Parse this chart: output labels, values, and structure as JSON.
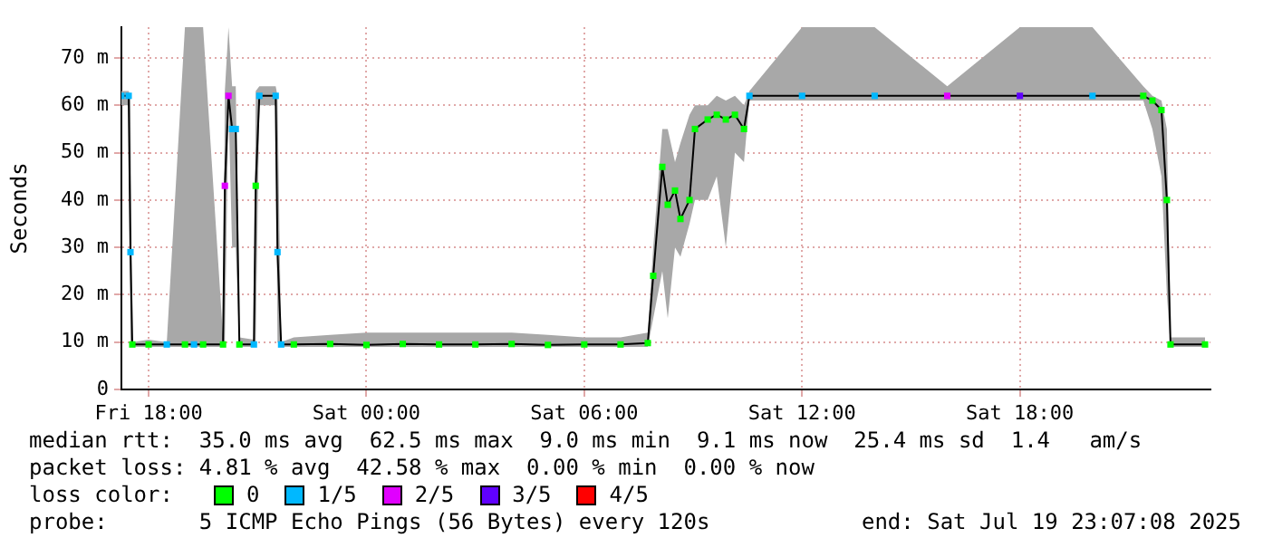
{
  "chart_data": {
    "type": "line",
    "ylabel": "Seconds",
    "legend_title": "loss color:",
    "legend": "bottom",
    "grid": true,
    "marker": "square",
    "annotations": [
      "median rtt:  35.0 ms avg  62.5 ms max  9.0 ms min  9.1 ms now  25.4 ms sd  1.4   am/s",
      "packet loss: 4.81 % avg  42.58 % max  0.00 % min  0.00 % now",
      "probe:       5 ICMP Echo Pings (56 Bytes) every 120s",
      "end: Sat Jul 19 23:07:08 2025"
    ],
    "xlim": [
      "2025-07-18T17:15",
      "2025-07-19T23:15"
    ],
    "xticks": [
      {
        "value": "2025-07-18T18:00",
        "label": "Fri 18:00"
      },
      {
        "value": "2025-07-19T00:00",
        "label": "Sat 00:00"
      },
      {
        "value": "2025-07-19T06:00",
        "label": "Sat 06:00"
      },
      {
        "value": "2025-07-19T12:00",
        "label": "Sat 12:00"
      },
      {
        "value": "2025-07-19T18:00",
        "label": "Sat 18:00"
      }
    ],
    "ylim": [
      0,
      76.5
    ],
    "yticks": [
      0,
      {
        "value": 10,
        "label": "10 m"
      },
      {
        "value": 20,
        "label": "20 m"
      },
      {
        "value": 30,
        "label": "30 m"
      },
      {
        "value": 40,
        "label": "40 m"
      },
      {
        "value": 50,
        "label": "50 m"
      },
      {
        "value": 60,
        "label": "60 m"
      },
      {
        "value": 70,
        "label": "70 m"
      }
    ],
    "x": [
      "2025-07-18T17:15",
      "2025-07-18T17:27",
      "2025-07-18T17:30",
      "2025-07-18T17:33",
      "2025-07-18T18:00",
      "2025-07-18T18:30",
      "2025-07-18T19:00",
      "2025-07-18T19:15",
      "2025-07-18T19:30",
      "2025-07-18T20:03",
      "2025-07-18T20:06",
      "2025-07-18T20:12",
      "2025-07-18T20:18",
      "2025-07-18T20:24",
      "2025-07-18T20:30",
      "2025-07-18T20:54",
      "2025-07-18T20:57",
      "2025-07-18T21:03",
      "2025-07-18T21:30",
      "2025-07-18T21:33",
      "2025-07-18T21:39",
      "2025-07-18T22:00",
      "2025-07-18T23:00",
      "2025-07-19T00:00",
      "2025-07-19T01:00",
      "2025-07-19T02:00",
      "2025-07-19T03:00",
      "2025-07-19T04:00",
      "2025-07-19T05:00",
      "2025-07-19T06:00",
      "2025-07-19T07:00",
      "2025-07-19T07:45",
      "2025-07-19T07:54",
      "2025-07-19T08:09",
      "2025-07-19T08:18",
      "2025-07-19T08:30",
      "2025-07-19T08:39",
      "2025-07-19T08:54",
      "2025-07-19T09:03",
      "2025-07-19T09:24",
      "2025-07-19T09:39",
      "2025-07-19T09:54",
      "2025-07-19T10:09",
      "2025-07-19T10:24",
      "2025-07-19T10:33",
      "2025-07-19T12:00",
      "2025-07-19T14:00",
      "2025-07-19T16:00",
      "2025-07-19T18:00",
      "2025-07-19T20:00",
      "2025-07-19T21:24",
      "2025-07-19T21:39",
      "2025-07-19T21:54",
      "2025-07-19T22:03",
      "2025-07-19T22:09",
      "2025-07-19T23:06"
    ],
    "series": [
      {
        "color": "#000000",
        "values": [
          62,
          62,
          29,
          9.5,
          9.5,
          9.5,
          9.5,
          9.5,
          9.5,
          9.5,
          43,
          62,
          55,
          55,
          9.5,
          9.5,
          43,
          62,
          62,
          29,
          9.5,
          9.5,
          9.6,
          9.4,
          9.6,
          9.5,
          9.5,
          9.6,
          9.4,
          9.5,
          9.5,
          9.8,
          24,
          47,
          39,
          42,
          36,
          40,
          55,
          57,
          58,
          57,
          58,
          55,
          62,
          62,
          62,
          62,
          62,
          62,
          62,
          61,
          59,
          40,
          9.5,
          9.5
        ],
        "lower": [
          60,
          60,
          10,
          9,
          9,
          9,
          9,
          9,
          9,
          9,
          10,
          60,
          30,
          30,
          9,
          9,
          10,
          60,
          60,
          10,
          9,
          9,
          9,
          9,
          9,
          9,
          9,
          9,
          9,
          9,
          9,
          9,
          15,
          25,
          15,
          30,
          28,
          35,
          40,
          40,
          45,
          30,
          50,
          48,
          61,
          61,
          61,
          61,
          61,
          61,
          61,
          55,
          45,
          20,
          9,
          9
        ],
        "upper": [
          63,
          63,
          62,
          10,
          10.5,
          10,
          76.5,
          76.5,
          76.5,
          11,
          63,
          76.5,
          64,
          64,
          11,
          10.5,
          63,
          64,
          64,
          62,
          10,
          11,
          11.5,
          12,
          12,
          12,
          12,
          12,
          11.5,
          11,
          11,
          12,
          30,
          55,
          55,
          48,
          52,
          58,
          60,
          60,
          62,
          61,
          62,
          60,
          63,
          76.5,
          76.5,
          64,
          76.5,
          76.5,
          64,
          62,
          61,
          55,
          11,
          11
        ]
      },
      {
        "name": "0",
        "type": "scatter",
        "color": "#00ff00",
        "values": [
          null,
          null,
          null,
          9.5,
          9.5,
          null,
          9.5,
          null,
          9.5,
          9.5,
          null,
          null,
          null,
          null,
          9.5,
          null,
          43,
          null,
          null,
          null,
          null,
          9.5,
          9.6,
          9.4,
          9.6,
          9.5,
          9.5,
          9.6,
          9.4,
          9.5,
          9.5,
          9.8,
          24,
          47,
          39,
          42,
          36,
          40,
          55,
          57,
          58,
          57,
          58,
          55,
          null,
          null,
          null,
          null,
          null,
          null,
          62,
          61,
          59,
          40,
          9.5,
          9.5
        ]
      },
      {
        "name": "1/5",
        "type": "scatter",
        "color": "#00b8ff",
        "values": [
          62,
          62,
          29,
          null,
          null,
          9.5,
          null,
          9.5,
          null,
          null,
          null,
          null,
          55,
          55,
          null,
          9.5,
          null,
          62,
          62,
          29,
          9.5,
          null,
          null,
          null,
          null,
          null,
          null,
          null,
          null,
          null,
          null,
          null,
          null,
          null,
          null,
          null,
          null,
          null,
          null,
          null,
          null,
          null,
          null,
          null,
          62,
          62,
          62,
          null,
          null,
          62,
          null,
          null,
          null,
          null,
          null,
          null
        ]
      },
      {
        "name": "2/5",
        "type": "scatter",
        "color": "#e000ff",
        "values": [
          null,
          null,
          null,
          null,
          null,
          null,
          null,
          null,
          null,
          null,
          43,
          62,
          null,
          null,
          null,
          null,
          null,
          null,
          null,
          null,
          null,
          null,
          null,
          null,
          null,
          null,
          null,
          null,
          null,
          null,
          null,
          null,
          null,
          null,
          null,
          null,
          null,
          null,
          null,
          null,
          null,
          null,
          null,
          null,
          null,
          null,
          null,
          62,
          null,
          null,
          null,
          null,
          null,
          null,
          null,
          null
        ]
      },
      {
        "name": "3/5",
        "type": "scatter",
        "color": "#6000ff",
        "values": [
          null,
          null,
          null,
          null,
          null,
          null,
          null,
          null,
          null,
          null,
          null,
          null,
          null,
          null,
          null,
          null,
          null,
          null,
          null,
          null,
          null,
          null,
          null,
          null,
          null,
          null,
          null,
          null,
          null,
          null,
          null,
          null,
          null,
          null,
          null,
          null,
          null,
          null,
          null,
          null,
          null,
          null,
          null,
          null,
          null,
          null,
          null,
          null,
          62,
          null,
          null,
          null,
          null,
          null,
          null,
          null
        ]
      },
      {
        "name": "4/5",
        "type": "scatter",
        "color": "#ff0000",
        "values": [
          null,
          null,
          null,
          null,
          null,
          null,
          null,
          null,
          null,
          null,
          null,
          null,
          null,
          null,
          null,
          null,
          null,
          null,
          null,
          null,
          null,
          null,
          null,
          null,
          null,
          null,
          null,
          null,
          null,
          null,
          null,
          null,
          null,
          null,
          null,
          null,
          null,
          null,
          null,
          null,
          null,
          null,
          null,
          null,
          null,
          null,
          null,
          null,
          null,
          null,
          null,
          null,
          null,
          null,
          null,
          null
        ]
      }
    ]
  }
}
